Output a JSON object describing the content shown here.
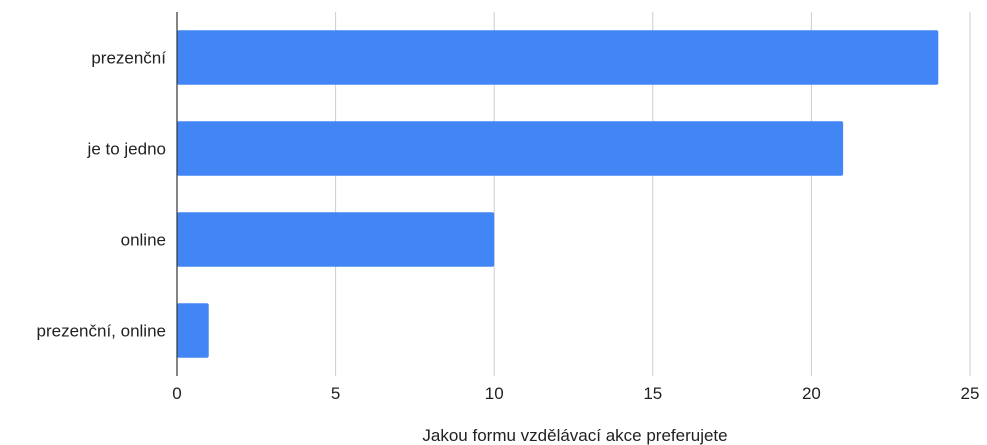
{
  "chart_data": {
    "type": "bar",
    "orientation": "horizontal",
    "categories": [
      "prezenční",
      "je to jedno",
      "online",
      "prezenční, online"
    ],
    "values": [
      24,
      21,
      10,
      1
    ],
    "xlabel": "Jakou formu vzdělávací akce preferujete",
    "ylabel": "",
    "xlim": [
      0,
      25
    ],
    "xticks": [
      "0",
      "5",
      "10",
      "15",
      "20",
      "25"
    ],
    "grid": true,
    "legend": "none",
    "colors": {
      "bar": "#4285f4",
      "grid": "#cccccc",
      "axis": "#333333",
      "text": "#222222"
    }
  }
}
